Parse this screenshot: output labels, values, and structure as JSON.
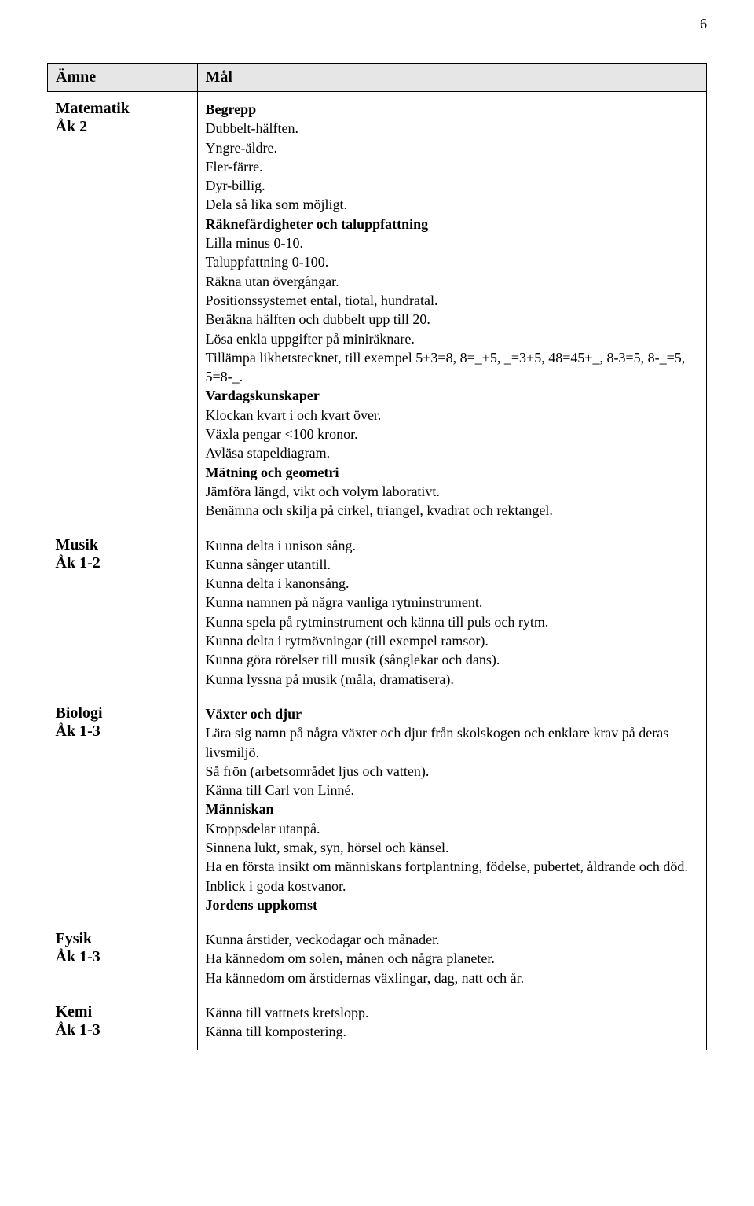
{
  "page_number": "6",
  "header": {
    "subject_col": "Ämne",
    "goal_col": "Mål"
  },
  "rows": [
    {
      "subject_name": "Matematik",
      "subject_grade": "Åk 2",
      "lines": [
        {
          "text": "Begrepp",
          "bold": true
        },
        {
          "text": "Dubbelt-hälften."
        },
        {
          "text": "Yngre-äldre."
        },
        {
          "text": "Fler-färre."
        },
        {
          "text": "Dyr-billig."
        },
        {
          "text": "Dela så lika som möjligt."
        },
        {
          "text": "Räknefärdigheter och taluppfattning",
          "bold": true
        },
        {
          "text": "Lilla minus 0-10."
        },
        {
          "text": "Taluppfattning 0-100."
        },
        {
          "text": "Räkna utan övergångar."
        },
        {
          "text": "Positionssystemet ental, tiotal, hundratal."
        },
        {
          "text": "Beräkna hälften och dubbelt upp till 20."
        },
        {
          "text": "Lösa enkla uppgifter på miniräknare."
        },
        {
          "text": "Tillämpa likhetstecknet, till exempel 5+3=8, 8=_+5, _=3+5, 48=45+_, 8-3=5, 8-_=5, 5=8-_."
        },
        {
          "text": "Vardagskunskaper",
          "bold": true
        },
        {
          "text": "Klockan kvart i och kvart över."
        },
        {
          "text": "Växla pengar <100 kronor."
        },
        {
          "text": "Avläsa stapeldiagram."
        },
        {
          "text": "Mätning och geometri",
          "bold": true
        },
        {
          "text": "Jämföra längd, vikt och volym laborativt."
        },
        {
          "text": "Benämna och skilja på cirkel, triangel, kvadrat och rektangel."
        }
      ]
    },
    {
      "subject_name": "Musik",
      "subject_grade": "Åk 1-2",
      "lines": [
        {
          "text": "Kunna delta i unison sång."
        },
        {
          "text": "Kunna sånger utantill."
        },
        {
          "text": "Kunna delta i kanonsång."
        },
        {
          "text": "Kunna namnen på några vanliga rytminstrument."
        },
        {
          "text": "Kunna spela på rytminstrument och känna till puls och rytm."
        },
        {
          "text": "Kunna delta i rytmövningar (till exempel ramsor)."
        },
        {
          "text": "Kunna göra rörelser till musik (sånglekar och dans)."
        },
        {
          "text": "Kunna lyssna på musik (måla, dramatisera)."
        }
      ]
    },
    {
      "subject_name": "Biologi",
      "subject_grade": "Åk 1-3",
      "lines": [
        {
          "text": "Växter och djur",
          "bold": true
        },
        {
          "text": "Lära sig namn på några växter och djur från skolskogen och enklare krav på deras livsmiljö."
        },
        {
          "text": "Så frön (arbetsområdet ljus och vatten)."
        },
        {
          "text": "Känna till Carl von Linné."
        },
        {
          "text": "Människan",
          "bold": true
        },
        {
          "text": "Kroppsdelar utanpå."
        },
        {
          "text": "Sinnena lukt, smak, syn, hörsel och känsel."
        },
        {
          "text": "Ha en första insikt om människans fortplantning, födelse, pubertet, åldrande och död."
        },
        {
          "text": "Inblick i goda kostvanor."
        },
        {
          "text": "Jordens uppkomst",
          "bold": true
        }
      ]
    },
    {
      "subject_name": "Fysik",
      "subject_grade": "Åk 1-3",
      "lines": [
        {
          "text": "Kunna årstider, veckodagar och månader."
        },
        {
          "text": "Ha kännedom om solen, månen och några planeter."
        },
        {
          "text": "Ha kännedom om årstidernas växlingar, dag, natt och år."
        }
      ]
    },
    {
      "subject_name": "Kemi",
      "subject_grade": "Åk 1-3",
      "lines": [
        {
          "text": "Känna till vattnets kretslopp."
        },
        {
          "text": "Känna till kompostering."
        }
      ]
    }
  ]
}
